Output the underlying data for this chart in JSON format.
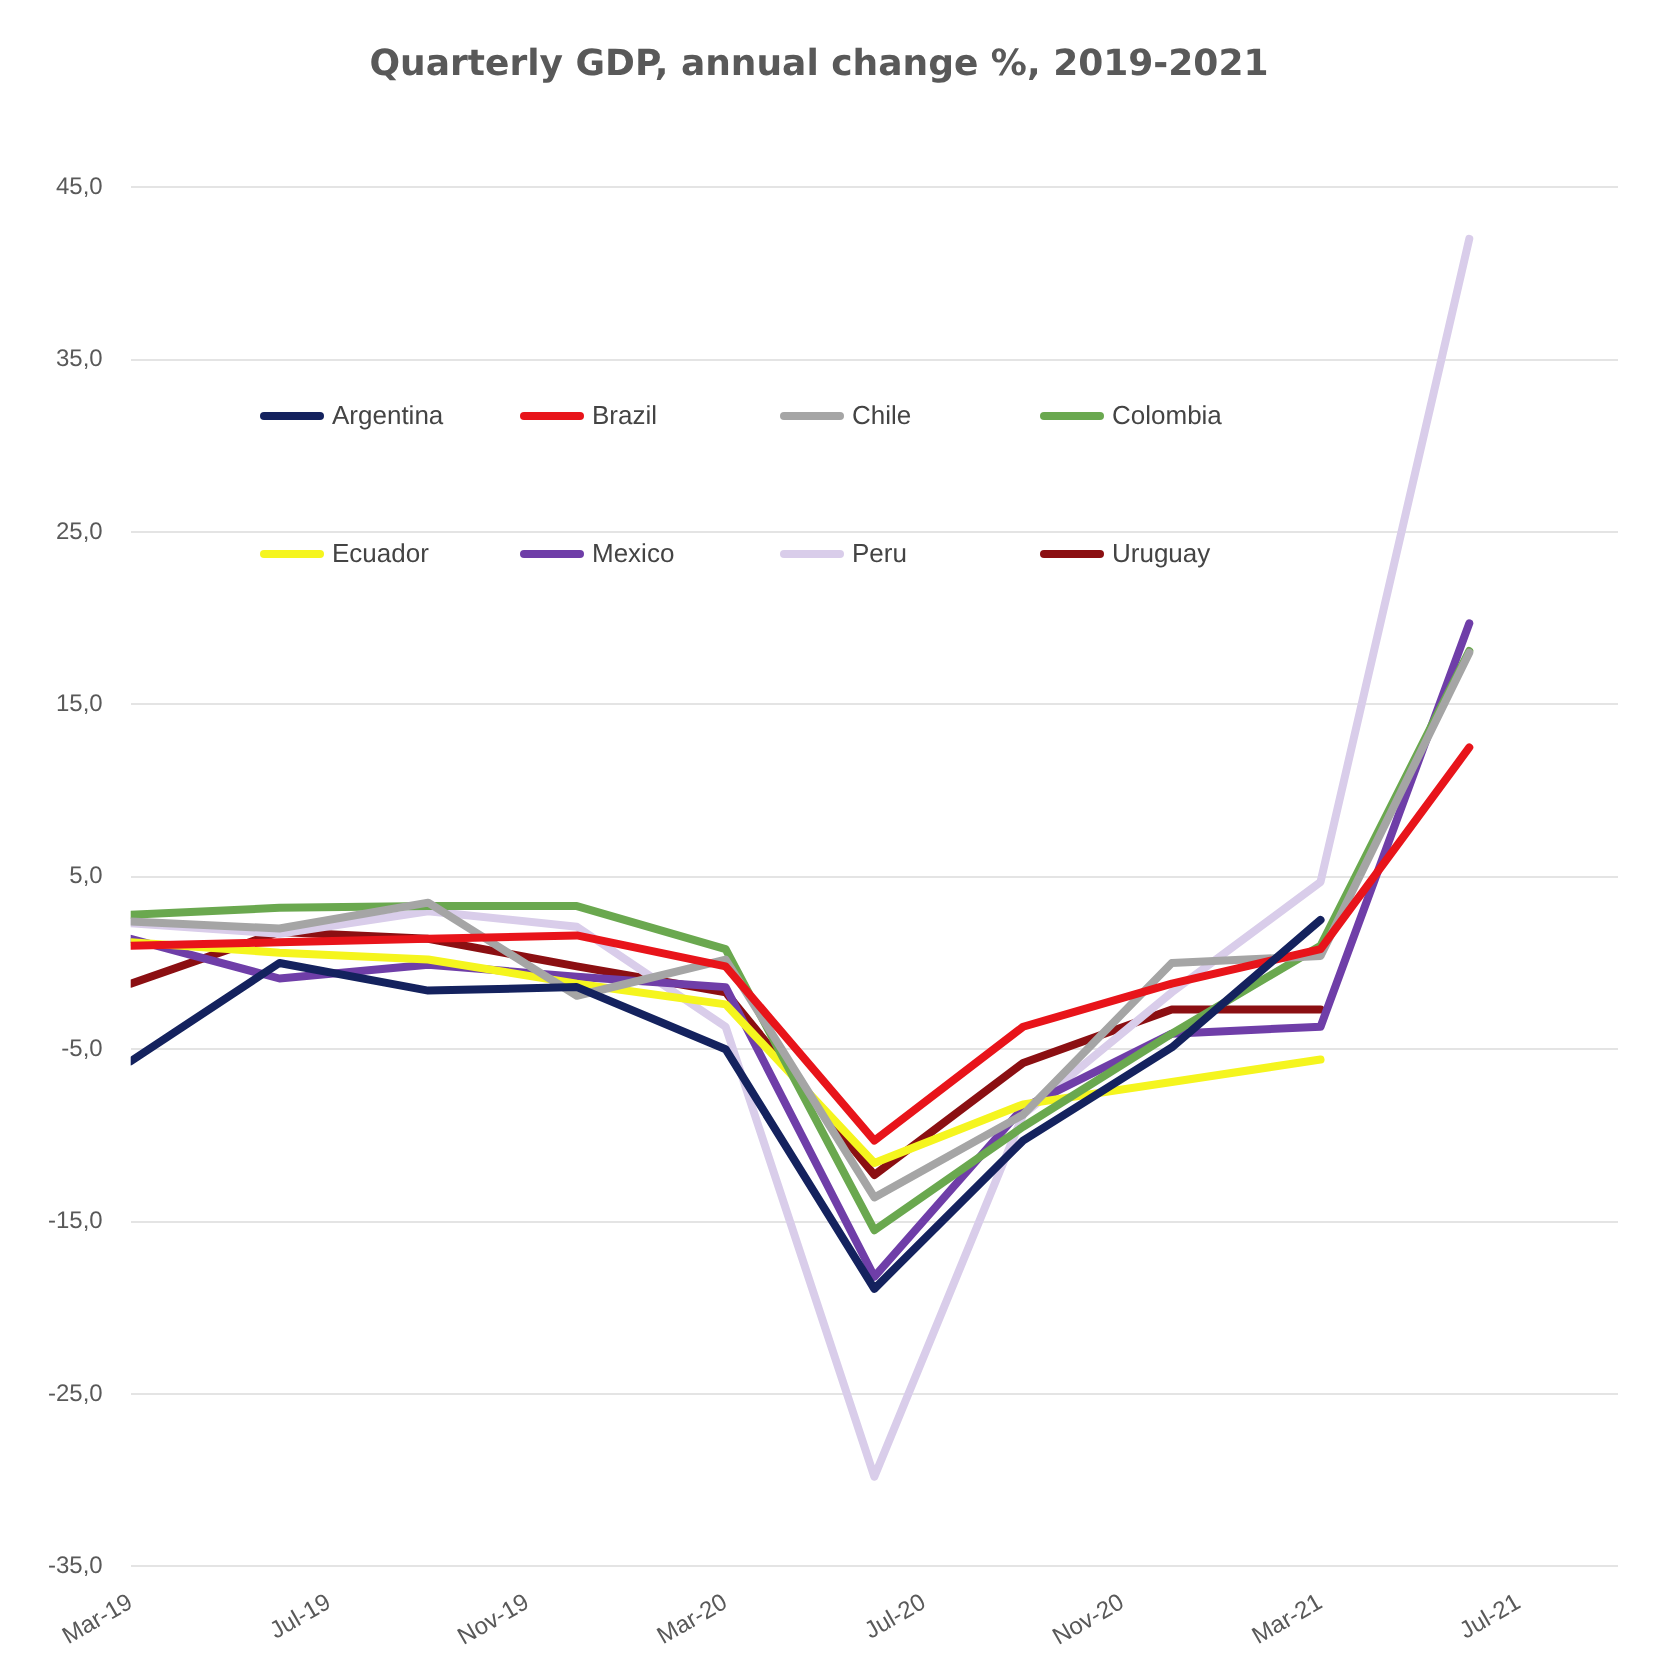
{
  "chart_data": {
    "type": "line",
    "title": "Quarterly GDP, annual change %, 2019-2021",
    "x": [
      "2019-03",
      "2019-06",
      "2019-09",
      "2019-12",
      "2020-03",
      "2020-06",
      "2020-09",
      "2020-12",
      "2021-03",
      "2021-06"
    ],
    "series": [
      {
        "name": "Argentina",
        "color": "#14225e",
        "values": [
          -5.7,
          0,
          -1.6,
          -1.4,
          -5.0,
          -18.9,
          -10.3,
          -4.9,
          2.5,
          null
        ]
      },
      {
        "name": "Brazil",
        "color": "#e8141a",
        "values": [
          1.0,
          1.2,
          1.4,
          1.6,
          -0.2,
          -10.3,
          -3.7,
          -1.2,
          0.8,
          12.5
        ]
      },
      {
        "name": "Chile",
        "color": "#a5a5a5",
        "values": [
          2.4,
          2.0,
          3.5,
          -1.9,
          0.2,
          -13.6,
          -8.8,
          0,
          0.4,
          18.0
        ]
      },
      {
        "name": "Colombia",
        "color": "#6aa84f",
        "values": [
          2.8,
          3.2,
          3.3,
          3.3,
          0.8,
          -15.5,
          -9.5,
          -4.1,
          1.0,
          18.1
        ]
      },
      {
        "name": "Ecuador",
        "color": "#f5f51e",
        "values": [
          1.2,
          0.6,
          0.2,
          -1.2,
          -2.4,
          -11.6,
          -8.2,
          -6.9,
          -5.6,
          null
        ]
      },
      {
        "name": "Mexico",
        "color": "#6f3ea8",
        "values": [
          1.4,
          -0.9,
          -0.1,
          -0.8,
          -1.4,
          -18.2,
          -8.4,
          -4.1,
          -3.7,
          19.7
        ]
      },
      {
        "name": "Peru",
        "color": "#d9cdea",
        "values": [
          2.3,
          1.7,
          3.0,
          2.1,
          -3.7,
          -29.8,
          -8.8,
          -1.7,
          4.7,
          42.0
        ]
      },
      {
        "name": "Uruguay",
        "color": "#8b0f12",
        "values": [
          -1.2,
          1.8,
          1.4,
          -0.2,
          -1.7,
          -12.3,
          -5.8,
          -2.7,
          -2.7,
          null
        ]
      }
    ],
    "xlim": [
      "2019-03",
      "2021-09"
    ],
    "xticks": [
      {
        "value": "2019-03",
        "label": "Mar-19"
      },
      {
        "value": "2019-07",
        "label": "Jul-19"
      },
      {
        "value": "2019-11",
        "label": "Nov-19"
      },
      {
        "value": "2020-03",
        "label": "Mar-20"
      },
      {
        "value": "2020-07",
        "label": "Jul-20"
      },
      {
        "value": "2020-11",
        "label": "Nov-20"
      },
      {
        "value": "2021-03",
        "label": "Mar-21"
      },
      {
        "value": "2021-07",
        "label": "Jul-21"
      }
    ],
    "ylim": [
      -35,
      45
    ],
    "yticks": [
      {
        "value": -35,
        "label": "-35,0"
      },
      {
        "value": -25,
        "label": "-25,0"
      },
      {
        "value": -15,
        "label": "-15,0"
      },
      {
        "value": -5,
        "label": "-5,0"
      },
      {
        "value": 5,
        "label": "5,0"
      },
      {
        "value": 15,
        "label": "15,0"
      },
      {
        "value": 25,
        "label": "25,0"
      },
      {
        "value": 35,
        "label": "35,0"
      },
      {
        "value": 45,
        "label": "45,0"
      }
    ],
    "grid": "y",
    "legend": "top left",
    "marker": "none",
    "line_style": "solid"
  }
}
